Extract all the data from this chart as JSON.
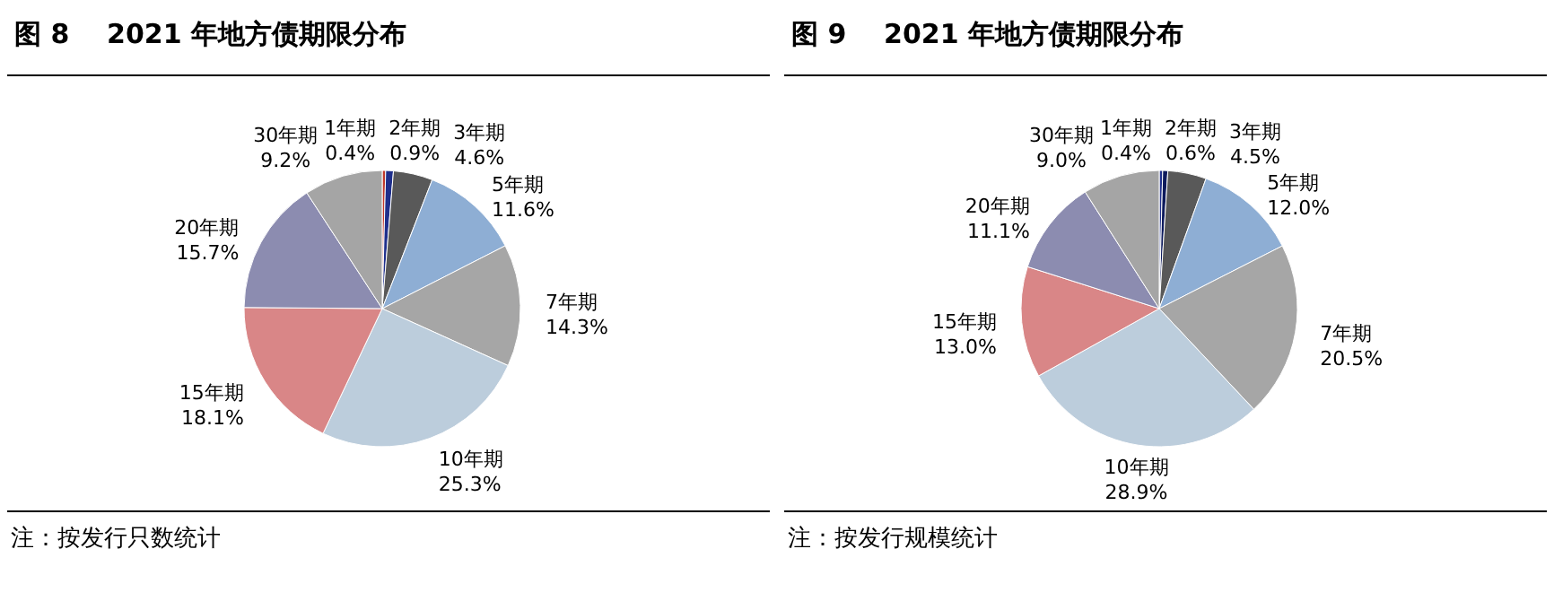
{
  "chart_data": [
    {
      "type": "pie",
      "title": "图 8    2021 年地方债期限分布",
      "categories": [
        "1年期",
        "2年期",
        "3年期",
        "5年期",
        "7年期",
        "10年期",
        "15年期",
        "20年期",
        "30年期"
      ],
      "values": [
        0.4,
        0.9,
        4.6,
        11.6,
        14.3,
        25.3,
        18.1,
        15.7,
        9.2
      ],
      "value_labels": [
        "0.4%",
        "0.9%",
        "4.6%",
        "11.6%",
        "14.3%",
        "25.3%",
        "18.1%",
        "15.7%",
        "9.2%"
      ],
      "colors": [
        "#c0392b",
        "#1f2f8c",
        "#595959",
        "#8eaed4",
        "#a6a6a6",
        "#bccddc",
        "#d98687",
        "#8c8cb0",
        "#a5a5a5"
      ],
      "annotations": [
        "注：按发行只数统计"
      ]
    },
    {
      "type": "pie",
      "title": "图 9    2021 年地方债期限分布",
      "categories": [
        "1年期",
        "2年期",
        "3年期",
        "5年期",
        "7年期",
        "10年期",
        "15年期",
        "20年期",
        "30年期"
      ],
      "values": [
        0.4,
        0.6,
        4.5,
        12.0,
        20.5,
        28.9,
        13.0,
        11.1,
        9.0
      ],
      "value_labels": [
        "0.4%",
        "0.6%",
        "4.5%",
        "12.0%",
        "20.5%",
        "28.9%",
        "13.0%",
        "11.1%",
        "9.0%"
      ],
      "colors": [
        "#1f2f8c",
        "#0d1a5c",
        "#595959",
        "#8eaed4",
        "#a6a6a6",
        "#bccddc",
        "#d98687",
        "#8c8cb0",
        "#a5a5a5"
      ],
      "annotations": [
        "注：按发行规模统计"
      ]
    }
  ]
}
